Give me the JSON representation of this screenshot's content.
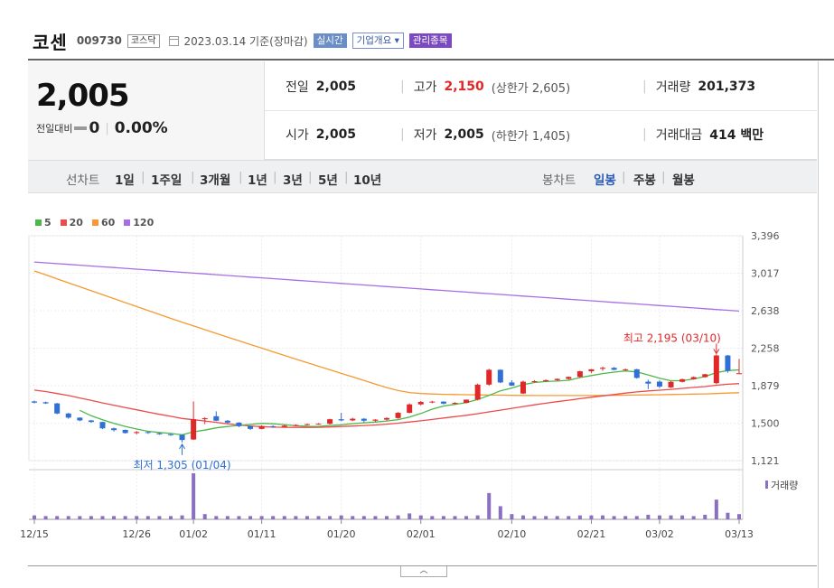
{
  "header": {
    "name": "코센",
    "code": "009730",
    "market": "코스닥",
    "date": "2023.03.14 기준(장마감)",
    "tag_realtime": "실시간",
    "tag_company": "기업개요 ▾",
    "tag_managed": "관리종목"
  },
  "quote": {
    "price": "2,005",
    "change_label": "전일대비",
    "change": "0",
    "change_pct": "0.00%",
    "prev_label": "전일",
    "prev": "2,005",
    "open_label": "시가",
    "open": "2,005",
    "high_label": "고가",
    "high": "2,150",
    "upper_limit": "(상한가 2,605)",
    "low_label": "저가",
    "low": "2,005",
    "lower_limit": "(하한가 1,405)",
    "volume_label": "거래량",
    "volume": "201,373",
    "amount_label": "거래대금",
    "amount": "414 백만"
  },
  "tabs": {
    "line_label": "선차트",
    "line_items": [
      "1일",
      "1주일",
      "3개월",
      "1년",
      "3년",
      "5년",
      "10년"
    ],
    "candle_label": "봉차트",
    "candle_items": [
      "일봉",
      "주봉",
      "월봉"
    ],
    "candle_selected": 0
  },
  "colors": {
    "up": "#e12828",
    "down": "#2f6fd6",
    "ma5": "#4cb849",
    "ma20": "#ee4a4a",
    "ma60": "#f59a32",
    "ma120": "#a56ee6",
    "volume": "#8a6fc2"
  },
  "chart_data": {
    "type": "candlestick",
    "ylim": [
      1121,
      3396
    ],
    "yticks": [
      "3,396",
      "3,017",
      "2,638",
      "2,258",
      "1,879",
      "1,500",
      "1,121"
    ],
    "xtick_labels": [
      "12/15",
      "12/26",
      "01/02",
      "01/11",
      "01/20",
      "02/01",
      "02/10",
      "02/21",
      "03/02",
      "03/13"
    ],
    "ma_legend": [
      "5",
      "20",
      "60",
      "120"
    ],
    "volume_label": "거래량",
    "annotations": {
      "high": "최고 2,195 (03/10)",
      "low": "최저 1,305 (01/04)"
    },
    "candles": [
      {
        "o": 1720,
        "h": 1728,
        "l": 1700,
        "c": 1708
      },
      {
        "o": 1712,
        "h": 1718,
        "l": 1695,
        "c": 1700
      },
      {
        "o": 1700,
        "h": 1705,
        "l": 1590,
        "c": 1598
      },
      {
        "o": 1598,
        "h": 1604,
        "l": 1545,
        "c": 1556
      },
      {
        "o": 1556,
        "h": 1560,
        "l": 1520,
        "c": 1528
      },
      {
        "o": 1528,
        "h": 1533,
        "l": 1505,
        "c": 1512
      },
      {
        "o": 1512,
        "h": 1515,
        "l": 1440,
        "c": 1448
      },
      {
        "o": 1448,
        "h": 1455,
        "l": 1415,
        "c": 1430
      },
      {
        "o": 1432,
        "h": 1436,
        "l": 1395,
        "c": 1400
      },
      {
        "o": 1400,
        "h": 1420,
        "l": 1388,
        "c": 1410
      },
      {
        "o": 1410,
        "h": 1414,
        "l": 1392,
        "c": 1402
      },
      {
        "o": 1398,
        "h": 1402,
        "l": 1382,
        "c": 1388
      },
      {
        "o": 1388,
        "h": 1391,
        "l": 1372,
        "c": 1380
      },
      {
        "o": 1382,
        "h": 1384,
        "l": 1305,
        "c": 1330
      },
      {
        "o": 1335,
        "h": 1720,
        "l": 1330,
        "c": 1540
      },
      {
        "o": 1540,
        "h": 1560,
        "l": 1490,
        "c": 1550
      },
      {
        "o": 1570,
        "h": 1620,
        "l": 1520,
        "c": 1525
      },
      {
        "o": 1525,
        "h": 1532,
        "l": 1495,
        "c": 1506
      },
      {
        "o": 1506,
        "h": 1510,
        "l": 1460,
        "c": 1470
      },
      {
        "o": 1470,
        "h": 1476,
        "l": 1432,
        "c": 1442
      },
      {
        "o": 1442,
        "h": 1478,
        "l": 1438,
        "c": 1470
      },
      {
        "o": 1470,
        "h": 1478,
        "l": 1452,
        "c": 1462
      },
      {
        "o": 1462,
        "h": 1484,
        "l": 1458,
        "c": 1475
      },
      {
        "o": 1475,
        "h": 1490,
        "l": 1468,
        "c": 1482
      },
      {
        "o": 1482,
        "h": 1496,
        "l": 1476,
        "c": 1490
      },
      {
        "o": 1490,
        "h": 1500,
        "l": 1485,
        "c": 1494
      },
      {
        "o": 1494,
        "h": 1545,
        "l": 1486,
        "c": 1540
      },
      {
        "o": 1540,
        "h": 1605,
        "l": 1520,
        "c": 1528
      },
      {
        "o": 1528,
        "h": 1555,
        "l": 1520,
        "c": 1545
      },
      {
        "o": 1545,
        "h": 1552,
        "l": 1505,
        "c": 1525
      },
      {
        "o": 1525,
        "h": 1540,
        "l": 1512,
        "c": 1536
      },
      {
        "o": 1536,
        "h": 1560,
        "l": 1525,
        "c": 1552
      },
      {
        "o": 1552,
        "h": 1612,
        "l": 1545,
        "c": 1605
      },
      {
        "o": 1605,
        "h": 1700,
        "l": 1600,
        "c": 1690
      },
      {
        "o": 1690,
        "h": 1725,
        "l": 1680,
        "c": 1715
      },
      {
        "o": 1712,
        "h": 1726,
        "l": 1702,
        "c": 1718
      },
      {
        "o": 1718,
        "h": 1722,
        "l": 1690,
        "c": 1698
      },
      {
        "o": 1698,
        "h": 1712,
        "l": 1690,
        "c": 1705
      },
      {
        "o": 1705,
        "h": 1740,
        "l": 1700,
        "c": 1738
      },
      {
        "o": 1738,
        "h": 1900,
        "l": 1730,
        "c": 1890
      },
      {
        "o": 1890,
        "h": 2050,
        "l": 1880,
        "c": 2040
      },
      {
        "o": 2040,
        "h": 2045,
        "l": 1905,
        "c": 1912
      },
      {
        "o": 1912,
        "h": 1935,
        "l": 1875,
        "c": 1880
      },
      {
        "o": 1800,
        "h": 1930,
        "l": 1795,
        "c": 1920
      },
      {
        "o": 1920,
        "h": 1935,
        "l": 1912,
        "c": 1925
      },
      {
        "o": 1925,
        "h": 1942,
        "l": 1915,
        "c": 1935
      },
      {
        "o": 1935,
        "h": 1952,
        "l": 1926,
        "c": 1948
      },
      {
        "o": 1948,
        "h": 1972,
        "l": 1940,
        "c": 1968
      },
      {
        "o": 1968,
        "h": 2030,
        "l": 1960,
        "c": 2025
      },
      {
        "o": 2025,
        "h": 2048,
        "l": 2008,
        "c": 2045
      },
      {
        "o": 2050,
        "h": 2072,
        "l": 2030,
        "c": 2060
      },
      {
        "o": 2060,
        "h": 2068,
        "l": 2036,
        "c": 2040
      },
      {
        "o": 2040,
        "h": 2052,
        "l": 2030,
        "c": 2045
      },
      {
        "o": 2045,
        "h": 2050,
        "l": 1950,
        "c": 1958
      },
      {
        "o": 1920,
        "h": 1940,
        "l": 1845,
        "c": 1900
      },
      {
        "o": 1920,
        "h": 1935,
        "l": 1855,
        "c": 1870
      },
      {
        "o": 1862,
        "h": 1925,
        "l": 1856,
        "c": 1918
      },
      {
        "o": 1918,
        "h": 1950,
        "l": 1912,
        "c": 1945
      },
      {
        "o": 1945,
        "h": 1972,
        "l": 1940,
        "c": 1966
      },
      {
        "o": 1966,
        "h": 2000,
        "l": 1960,
        "c": 1995
      },
      {
        "o": 1905,
        "h": 2195,
        "l": 1895,
        "c": 2185
      },
      {
        "o": 2185,
        "h": 2190,
        "l": 2010,
        "c": 2030
      },
      {
        "o": 2005,
        "h": 2150,
        "l": 2005,
        "c": 2005
      }
    ],
    "volumes": [
      6,
      5,
      5,
      5,
      5,
      5,
      5,
      5,
      5,
      5,
      5,
      5,
      5,
      6,
      70,
      8,
      5,
      5,
      5,
      5,
      5,
      5,
      5,
      5,
      5,
      5,
      5,
      6,
      5,
      5,
      5,
      5,
      6,
      9,
      6,
      5,
      5,
      5,
      5,
      6,
      40,
      20,
      8,
      6,
      5,
      5,
      5,
      5,
      6,
      6,
      6,
      5,
      5,
      5,
      7,
      6,
      6,
      6,
      5,
      7,
      30,
      10,
      8
    ],
    "ma5": [
      null,
      null,
      null,
      null,
      1630,
      1575,
      1535,
      1498,
      1467,
      1441,
      1418,
      1406,
      1396,
      1382,
      1412,
      1430,
      1453,
      1466,
      1478,
      1487,
      1498,
      1494,
      1486,
      1475,
      1468,
      1466,
      1477,
      1484,
      1496,
      1504,
      1511,
      1522,
      1536,
      1562,
      1598,
      1642,
      1674,
      1690,
      1708,
      1740,
      1781,
      1827,
      1856,
      1890,
      1911,
      1921,
      1926,
      1934,
      1962,
      1982,
      2002,
      2016,
      2028,
      2018,
      1988,
      1954,
      1930,
      1930,
      1948,
      1972,
      2012,
      2032,
      2039
    ],
    "ma20": [
      1835,
      1820,
      1800,
      1780,
      1755,
      1730,
      1705,
      1682,
      1658,
      1635,
      1612,
      1590,
      1570,
      1548,
      1535,
      1522,
      1508,
      1494,
      1482,
      1472,
      1465,
      1460,
      1458,
      1457,
      1457,
      1458,
      1462,
      1466,
      1471,
      1476,
      1482,
      1490,
      1500,
      1512,
      1524,
      1538,
      1552,
      1566,
      1580,
      1596,
      1614,
      1632,
      1650,
      1668,
      1686,
      1702,
      1718,
      1732,
      1748,
      1762,
      1776,
      1790,
      1804,
      1816,
      1826,
      1834,
      1842,
      1852,
      1862,
      1870,
      1884,
      1894,
      1900
    ],
    "ma60": [
      3040,
      3000,
      2960,
      2920,
      2880,
      2840,
      2800,
      2760,
      2720,
      2680,
      2640,
      2600,
      2560,
      2522,
      2484,
      2446,
      2408,
      2370,
      2333,
      2296,
      2259,
      2222,
      2185,
      2148,
      2112,
      2076,
      2040,
      2004,
      1968,
      1932,
      1896,
      1860,
      1830,
      1810,
      1800,
      1795,
      1792,
      1790,
      1788,
      1786,
      1784,
      1783,
      1782,
      1781,
      1780,
      1780,
      1780,
      1780,
      1780,
      1780,
      1781,
      1782,
      1783,
      1784,
      1786,
      1788,
      1790,
      1792,
      1794,
      1796,
      1800,
      1804,
      1808
    ],
    "ma120": [
      3130,
      3122,
      3114,
      3106,
      3098,
      3090,
      3082,
      3074,
      3066,
      3058,
      3050,
      3042,
      3034,
      3026,
      3018,
      3010,
      3002,
      2994,
      2986,
      2978,
      2970,
      2962,
      2954,
      2946,
      2938,
      2930,
      2922,
      2914,
      2906,
      2898,
      2890,
      2882,
      2874,
      2866,
      2858,
      2850,
      2842,
      2834,
      2826,
      2818,
      2810,
      2802,
      2794,
      2786,
      2778,
      2770,
      2762,
      2754,
      2746,
      2738,
      2730,
      2722,
      2714,
      2706,
      2698,
      2690,
      2682,
      2674,
      2666,
      2658,
      2650,
      2642,
      2634
    ]
  }
}
